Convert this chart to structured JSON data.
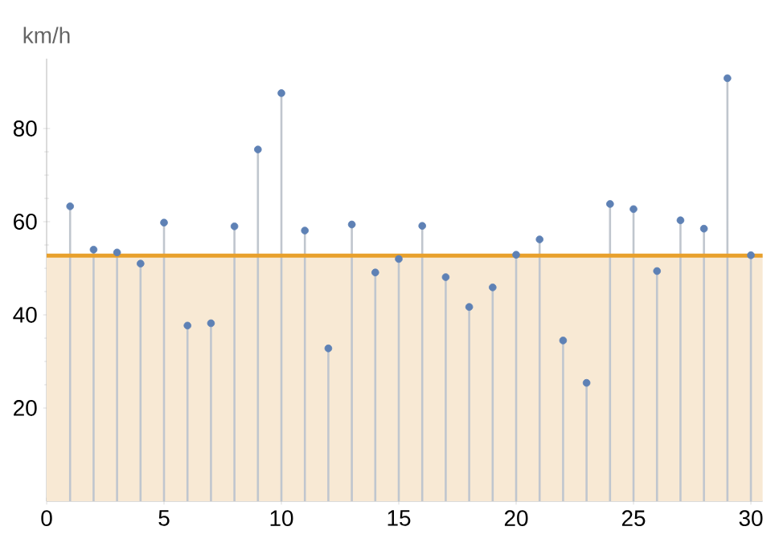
{
  "chart_data": {
    "type": "lollipop",
    "ylabel": "km/h",
    "x": [
      1,
      2,
      3,
      4,
      5,
      6,
      7,
      8,
      9,
      10,
      11,
      12,
      13,
      14,
      15,
      16,
      17,
      18,
      19,
      20,
      21,
      22,
      23,
      24,
      25,
      26,
      27,
      28,
      29,
      30
    ],
    "series": [
      {
        "color": "#5e81b5",
        "values": [
          63.3,
          54.0,
          53.4,
          51.0,
          59.8,
          37.7,
          38.2,
          59.0,
          75.5,
          87.6,
          58.1,
          32.8,
          59.4,
          49.1,
          52.0,
          59.1,
          48.1,
          41.7,
          45.9,
          52.9,
          56.2,
          34.5,
          25.4,
          63.8,
          62.7,
          49.4,
          60.3,
          58.5,
          90.8,
          52.8
        ]
      }
    ],
    "xlim": [
      0,
      30.5
    ],
    "ylim": [
      0,
      95
    ],
    "xticks": [
      0,
      5,
      10,
      15,
      20,
      25,
      30
    ],
    "yticks": [
      20,
      40,
      60,
      80
    ],
    "ref_lines": [
      {
        "axis": "y",
        "value": 52.7,
        "color": "#e8a02c"
      }
    ],
    "bands": [
      {
        "axis": "y",
        "from": 0,
        "to": 52.7,
        "color": "#f8e9d4"
      }
    ]
  }
}
